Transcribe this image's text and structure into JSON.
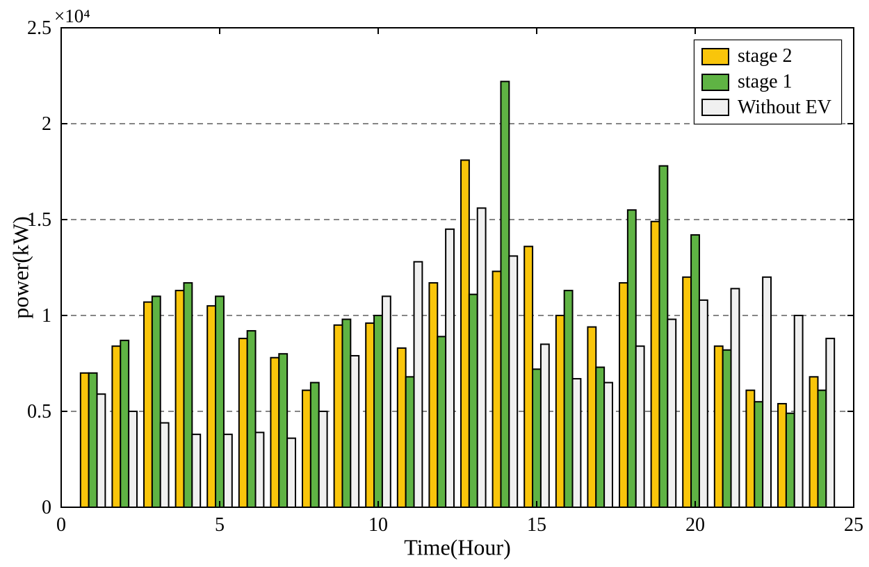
{
  "figure": {
    "exponent_label": "×10⁴"
  },
  "chart_data": {
    "type": "bar",
    "title": "",
    "xlabel": "Time(Hour)",
    "ylabel": "power(kW)",
    "x": [
      1,
      2,
      3,
      4,
      5,
      6,
      7,
      8,
      9,
      10,
      11,
      12,
      13,
      14,
      15,
      16,
      17,
      18,
      19,
      20,
      21,
      22,
      23,
      24
    ],
    "series": [
      {
        "name": "stage 2",
        "color": "#F9C50B",
        "values": [
          7000,
          8400,
          10700,
          11300,
          10500,
          8800,
          7800,
          6100,
          9500,
          9600,
          8300,
          11700,
          18100,
          12300,
          13600,
          10000,
          9400,
          11700,
          14900,
          12000,
          8400,
          6100,
          5400,
          6800
        ]
      },
      {
        "name": "stage 1",
        "color": "#5FB344",
        "values": [
          7000,
          8700,
          11000,
          11700,
          11000,
          9200,
          8000,
          6500,
          9800,
          10000,
          6800,
          8900,
          11100,
          22200,
          7200,
          11300,
          7300,
          15500,
          17800,
          14200,
          8200,
          5500,
          4900,
          6100
        ]
      },
      {
        "name": "Without EV",
        "color": "#F0F0F0",
        "values": [
          5900,
          5000,
          4400,
          3800,
          3800,
          3900,
          3600,
          5000,
          7900,
          11000,
          12800,
          14500,
          15600,
          13100,
          8500,
          6700,
          6500,
          8400,
          9800,
          10800,
          11400,
          12000,
          10000,
          8800
        ]
      }
    ],
    "xlim": [
      0,
      25
    ],
    "ylim": [
      0,
      25000
    ],
    "xticks": {
      "values": [
        0,
        5,
        10,
        15,
        20,
        25
      ],
      "labels": [
        "0",
        "5",
        "10",
        "15",
        "20",
        "25"
      ]
    },
    "yticks": {
      "values": [
        0,
        5000,
        10000,
        15000,
        20000,
        25000
      ],
      "labels": [
        "0",
        "0.5",
        "1",
        "1.5",
        "2",
        "2.5"
      ]
    },
    "grid": "horizontal-dashed",
    "bar_edge_color": "#000000",
    "legend": {
      "position": "top-right",
      "entries": [
        "stage 2",
        "stage 1",
        "Without EV"
      ]
    }
  }
}
